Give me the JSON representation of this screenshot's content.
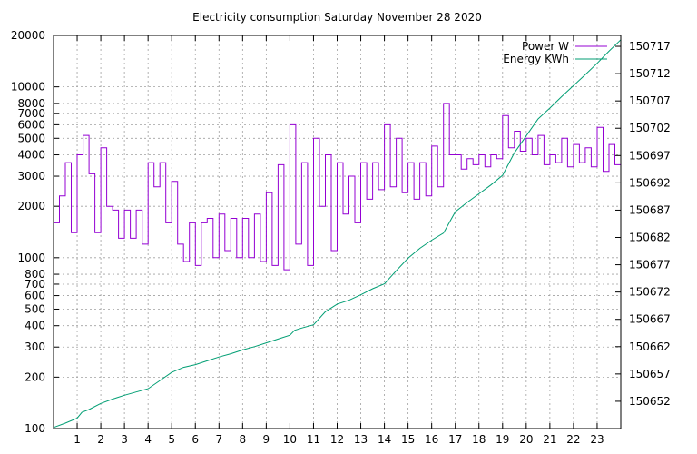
{
  "chart_data": {
    "type": "line",
    "title": "Electricity consumption Saturday November 28 2020",
    "xlabel": "",
    "ylabel": "",
    "y2label": "",
    "grid": true,
    "legend_position": "top-right",
    "x_range": [
      0,
      24
    ],
    "x_ticks": [
      1,
      2,
      3,
      4,
      5,
      6,
      7,
      8,
      9,
      10,
      11,
      12,
      13,
      14,
      15,
      16,
      17,
      18,
      19,
      20,
      21,
      22,
      23
    ],
    "y_axis": {
      "scale": "log",
      "range": [
        100,
        20000
      ],
      "ticks": [
        100,
        200,
        300,
        400,
        500,
        600,
        700,
        800,
        1000,
        2000,
        3000,
        4000,
        5000,
        6000,
        7000,
        8000,
        10000,
        20000
      ]
    },
    "y2_axis": {
      "scale": "linear",
      "range": [
        150647,
        150719
      ],
      "ticks": [
        150652,
        150657,
        150662,
        150667,
        150672,
        150677,
        150682,
        150687,
        150692,
        150697,
        150702,
        150707,
        150712,
        150717
      ]
    },
    "series": [
      {
        "name": "Power W",
        "axis": "y",
        "color": "#9400d3",
        "style": "step",
        "x": [
          0.0,
          0.25,
          0.5,
          0.75,
          1.0,
          1.25,
          1.5,
          1.75,
          2.0,
          2.25,
          2.5,
          2.75,
          3.0,
          3.25,
          3.5,
          3.75,
          4.0,
          4.25,
          4.5,
          4.75,
          5.0,
          5.25,
          5.5,
          5.75,
          6.0,
          6.25,
          6.5,
          6.75,
          7.0,
          7.25,
          7.5,
          7.75,
          8.0,
          8.25,
          8.5,
          8.75,
          9.0,
          9.25,
          9.5,
          9.75,
          10.0,
          10.25,
          10.5,
          10.75,
          11.0,
          11.25,
          11.5,
          11.75,
          12.0,
          12.25,
          12.5,
          12.75,
          13.0,
          13.25,
          13.5,
          13.75,
          14.0,
          14.25,
          14.5,
          14.75,
          15.0,
          15.25,
          15.5,
          15.75,
          16.0,
          16.25,
          16.5,
          16.75,
          17.0,
          17.25,
          17.5,
          17.75,
          18.0,
          18.25,
          18.5,
          18.75,
          19.0,
          19.25,
          19.5,
          19.75,
          20.0,
          20.25,
          20.5,
          20.75,
          21.0,
          21.25,
          21.5,
          21.75,
          22.0,
          22.25,
          22.5,
          22.75,
          23.0,
          23.25,
          23.5,
          23.75,
          24.0
        ],
        "values": [
          1600,
          2300,
          3600,
          1400,
          4000,
          5200,
          3100,
          1400,
          4400,
          2000,
          1900,
          1300,
          1900,
          1300,
          1900,
          1200,
          3600,
          2600,
          3600,
          1600,
          2800,
          1200,
          950,
          1600,
          900,
          1600,
          1700,
          1000,
          1800,
          1100,
          1700,
          1000,
          1700,
          1000,
          1800,
          950,
          2400,
          900,
          3500,
          850,
          6000,
          1200,
          3600,
          900,
          5000,
          2000,
          4000,
          1100,
          3600,
          1800,
          3000,
          1600,
          3600,
          2200,
          3600,
          2500,
          6000,
          2600,
          5000,
          2400,
          3600,
          2200,
          3600,
          2300,
          4500,
          2600,
          8000,
          4000,
          4000,
          3300,
          3800,
          3500,
          4000,
          3400,
          4000,
          3800,
          6800,
          4400,
          5500,
          4200,
          5000,
          4000,
          5200,
          3500,
          4000,
          3600,
          5000,
          3400,
          4600,
          3600,
          4400,
          3400,
          5800,
          3200,
          4600,
          3500,
          3800
        ]
      },
      {
        "name": "Energy KWh",
        "axis": "y2",
        "color": "#009e73",
        "style": "line",
        "x": [
          0.0,
          0.5,
          1.0,
          1.2,
          1.5,
          2.0,
          2.5,
          3.0,
          3.5,
          4.0,
          4.5,
          5.0,
          5.5,
          6.0,
          6.5,
          7.0,
          7.5,
          8.0,
          8.5,
          9.0,
          9.5,
          10.0,
          10.2,
          10.5,
          11.0,
          11.5,
          12.0,
          12.5,
          13.0,
          13.5,
          14.0,
          14.5,
          15.0,
          15.5,
          16.0,
          16.5,
          17.0,
          17.5,
          18.0,
          18.5,
          19.0,
          19.5,
          20.0,
          20.5,
          21.0,
          21.5,
          22.0,
          22.5,
          23.0,
          23.5,
          24.0
        ],
        "values": [
          150647.2,
          150648.0,
          150648.9,
          150650.0,
          150650.5,
          150651.6,
          150652.4,
          150653.1,
          150653.7,
          150654.3,
          150655.8,
          150657.3,
          150658.2,
          150658.7,
          150659.4,
          150660.1,
          150660.7,
          150661.4,
          150662.0,
          150662.7,
          150663.4,
          150664.1,
          150665.0,
          150665.4,
          150666.0,
          150668.4,
          150669.8,
          150670.5,
          150671.5,
          150672.6,
          150673.5,
          150675.9,
          150678.2,
          150680.0,
          150681.5,
          150682.8,
          150686.7,
          150688.4,
          150690.0,
          150691.6,
          150693.4,
          150697.5,
          150700.6,
          150703.7,
          150705.7,
          150707.8,
          150709.8,
          150711.8,
          150713.9,
          150716.1,
          150718.2
        ]
      }
    ]
  }
}
